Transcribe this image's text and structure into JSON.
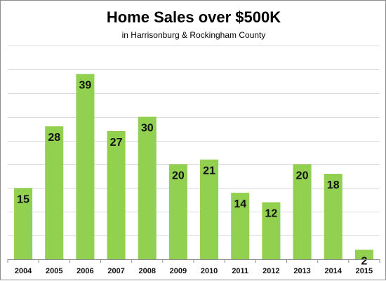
{
  "chart_data": {
    "type": "bar",
    "title": "Home Sales over $500K",
    "subtitle": "in Harrisonburg & Rockingham County",
    "categories": [
      "2004",
      "2005",
      "2006",
      "2007",
      "2008",
      "2009",
      "2010",
      "2011",
      "2012",
      "2013",
      "2014",
      "2015"
    ],
    "values": [
      15,
      28,
      39,
      27,
      30,
      20,
      21,
      14,
      12,
      20,
      18,
      2
    ],
    "ylim": [
      0,
      45
    ],
    "y_gridlines_step": 5,
    "grid": true,
    "legend": "none",
    "bar_color": "#92d050",
    "data_labels": true
  }
}
